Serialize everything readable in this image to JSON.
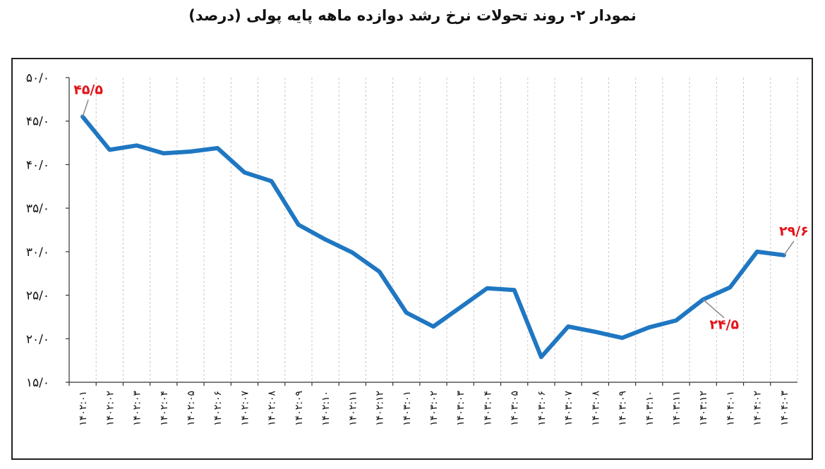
{
  "chart_data": {
    "type": "line",
    "title": "نمودار ۲- روند تحولات نرخ رشد دوازده ماهه پایه پولی (درصد)",
    "y_tick_labels": [
      "۱۵/۰",
      "۲۰/۰",
      "۲۵/۰",
      "۳۰/۰",
      "۳۵/۰",
      "۴۰/۰",
      "۴۵/۰",
      "۵۰/۰"
    ],
    "ylim": [
      15,
      50
    ],
    "grid": "vertical dashed",
    "categories": [
      "۱۴۰۲:۰۱",
      "۱۴۰۲:۰۲",
      "۱۴۰۲:۰۳",
      "۱۴۰۲:۰۴",
      "۱۴۰۲:۰۵",
      "۱۴۰۲:۰۶",
      "۱۴۰۲:۰۷",
      "۱۴۰۲:۰۸",
      "۱۴۰۲:۰۹",
      "۱۴۰۲:۱۰",
      "۱۴۰۲:۱۱",
      "۱۴۰۲:۱۲",
      "۱۴۰۳:۰۱",
      "۱۴۰۳:۰۲",
      "۱۴۰۳:۰۳",
      "۱۴۰۳:۰۴",
      "۱۴۰۳:۰۵",
      "۱۴۰۳:۰۶",
      "۱۴۰۳:۰۷",
      "۱۴۰۳:۰۸",
      "۱۴۰۳:۰۹",
      "۱۴۰۳:۱۰",
      "۱۴۰۳:۱۱",
      "۱۴۰۳:۱۲",
      "۱۴۰۴:۰۱",
      "۱۴۰۴:۰۲",
      "۱۴۰۴:۰۳"
    ],
    "series": [
      {
        "values": [
          45.5,
          41.7,
          42.2,
          41.3,
          41.5,
          41.9,
          39.1,
          38.1,
          33.1,
          31.4,
          29.9,
          27.7,
          23.0,
          21.4,
          23.6,
          25.8,
          25.6,
          17.9,
          21.4,
          20.8,
          20.1,
          21.3,
          22.1,
          24.5,
          25.9,
          30.0,
          29.6
        ],
        "color": "#1f77c2"
      }
    ],
    "data_labels": [
      {
        "index": 0,
        "text": "۴۵/۵"
      },
      {
        "index": 23,
        "text": "۲۴/۵"
      },
      {
        "index": 26,
        "text": "۲۹/۶"
      }
    ],
    "label_color": "#e3141b"
  }
}
